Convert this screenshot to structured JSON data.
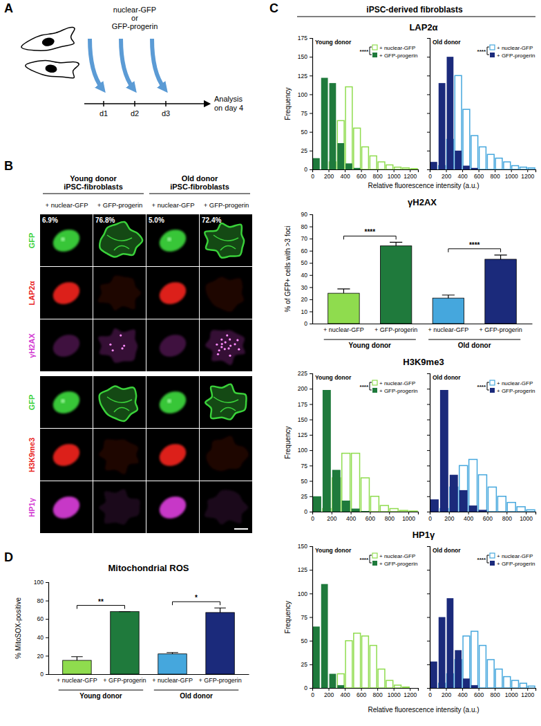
{
  "panel_labels": [
    "A",
    "B",
    "C",
    "D"
  ],
  "schematic": {
    "treatment": [
      "nuclear-GFP",
      "or",
      "GFP-progerin"
    ],
    "days": [
      "d1",
      "d2",
      "d3"
    ],
    "endpoint": [
      "Analysis",
      "on day 4"
    ]
  },
  "images": {
    "headers": [
      [
        "Young donor",
        "iPSC-fibroblasts"
      ],
      [
        "Old donor",
        "iPSC-fibroblasts"
      ]
    ],
    "columns": [
      "+ nuclear-GFP",
      "+ GFP-progerin",
      "+ nuclear-GFP",
      "+ GFP-progerin"
    ],
    "percentages": [
      "6.9%",
      "76.8%",
      "5.0%",
      "72.4%"
    ],
    "rows": [
      {
        "label": "GFP",
        "color": "#3ad13a"
      },
      {
        "label": "LAP2α",
        "color": "#e8231e"
      },
      {
        "label": "γH2AX",
        "color": "#d23ad2"
      },
      {
        "label": "GFP",
        "color": "#3ad13a"
      },
      {
        "label": "H3K9me3",
        "color": "#e8231e"
      },
      {
        "label": "HP1γ",
        "color": "#d23ad2"
      }
    ]
  },
  "section_title": "iPSC-derived fibroblasts",
  "chart_data": [
    {
      "type": "histogram",
      "title": "LAP2α",
      "subtitle": "Young donor",
      "ylabel": "Frequency",
      "xlabel": "Relative fluorescence intensity (a.u.)",
      "bins": [
        0,
        100,
        200,
        300,
        400,
        500,
        600,
        700,
        800,
        900,
        1000,
        1100,
        1200,
        1300
      ],
      "series": [
        {
          "name": "+ nuclear-GFP",
          "color": "#8fdc4e",
          "values": [
            0,
            0,
            10,
            65,
            110,
            55,
            30,
            18,
            10,
            6,
            3,
            2,
            1
          ]
        },
        {
          "name": "+ GFP-progerin",
          "color": "#1f7a3c",
          "values": [
            15,
            122,
            115,
            35,
            8,
            2,
            0,
            0,
            0,
            0,
            0,
            0,
            0
          ]
        }
      ],
      "xlim": [
        0,
        1300
      ],
      "xticks": [
        0,
        200,
        400,
        600,
        800,
        1000,
        1200
      ],
      "ylim": [
        0,
        175
      ],
      "yticks": [
        0,
        25,
        50,
        75,
        100,
        125,
        150,
        175
      ],
      "legend": "upper right",
      "annotation": "****"
    },
    {
      "type": "histogram",
      "subtitle": "Old donor",
      "bins": [
        0,
        100,
        200,
        300,
        400,
        500,
        600,
        700,
        800,
        900,
        1000,
        1100,
        1200,
        1300
      ],
      "series": [
        {
          "name": "+ nuclear-GFP",
          "color": "#45a7dd",
          "values": [
            0,
            5,
            40,
            125,
            80,
            45,
            30,
            20,
            15,
            10,
            5,
            3,
            2
          ]
        },
        {
          "name": "+ GFP-progerin",
          "color": "#1b2a7b",
          "values": [
            10,
            115,
            150,
            25,
            5,
            2,
            0,
            0,
            0,
            0,
            0,
            0,
            0
          ]
        }
      ],
      "xlim": [
        0,
        1300
      ],
      "xticks": [
        0,
        200,
        400,
        600,
        800,
        1000,
        1200
      ],
      "ylim": [
        0,
        175
      ],
      "yticks": [
        0,
        25,
        50,
        75,
        100,
        125,
        150,
        175
      ],
      "tick_labels": "x",
      "legend": "upper right",
      "annotation": "****"
    },
    {
      "type": "bar",
      "title": "γH2AX",
      "ylabel": "% of GFP+ cells with >3 foci",
      "categories": [
        "+ nuclear-GFP",
        "+ GFP-progerin",
        "+ nuclear-GFP",
        "+ GFP-progerin"
      ],
      "groups": [
        "Young donor",
        "Old donor"
      ],
      "values": [
        25,
        64,
        21,
        53
      ],
      "errors": [
        3.5,
        3,
        2.5,
        3.5
      ],
      "colors": [
        "#8fdc4e",
        "#1f7a3c",
        "#45a7dd",
        "#1b2a7b"
      ],
      "ylim": [
        0,
        90
      ],
      "yticks": [
        0,
        10,
        20,
        30,
        40,
        50,
        60,
        70,
        80,
        90
      ],
      "annotations": [
        {
          "text": "****",
          "from": 0,
          "to": 1
        },
        {
          "text": "****",
          "from": 2,
          "to": 3
        }
      ]
    },
    {
      "type": "histogram",
      "title": "H3K9me3",
      "subtitle": "Young donor",
      "ylabel": "Frequency",
      "bins": [
        0,
        100,
        200,
        300,
        400,
        500,
        600,
        700,
        800,
        900,
        1000,
        1100
      ],
      "series": [
        {
          "name": "+ nuclear-GFP",
          "color": "#8fdc4e",
          "values": [
            0,
            5,
            55,
            95,
            95,
            55,
            25,
            10,
            5,
            2,
            1
          ]
        },
        {
          "name": "+ GFP-progerin",
          "color": "#1f7a3c",
          "values": [
            25,
            198,
            68,
            18,
            5,
            1,
            0,
            0,
            0,
            0,
            0
          ]
        }
      ],
      "xlim": [
        0,
        1100
      ],
      "xticks": [
        0,
        200,
        400,
        600,
        800,
        1000
      ],
      "ylim": [
        0,
        225
      ],
      "yticks": [
        0,
        25,
        50,
        75,
        100,
        125,
        150,
        175,
        200,
        225
      ],
      "legend": "upper right",
      "annotation": "****"
    },
    {
      "type": "histogram",
      "subtitle": "Old donor",
      "bins": [
        0,
        100,
        200,
        300,
        400,
        500,
        600,
        700,
        800,
        900,
        1000,
        1100
      ],
      "series": [
        {
          "name": "+ nuclear-GFP",
          "color": "#45a7dd",
          "values": [
            0,
            5,
            40,
            75,
            85,
            60,
            40,
            25,
            15,
            8,
            3
          ]
        },
        {
          "name": "+ GFP-progerin",
          "color": "#1b2a7b",
          "values": [
            20,
            198,
            60,
            35,
            10,
            3,
            0,
            0,
            0,
            0,
            0
          ]
        }
      ],
      "xlim": [
        0,
        1100
      ],
      "xticks": [
        0,
        200,
        400,
        600,
        800,
        1000
      ],
      "ylim": [
        0,
        225
      ],
      "yticks": [
        0,
        25,
        50,
        75,
        100,
        125,
        150,
        175,
        200,
        225
      ],
      "tick_labels": "x",
      "legend": "upper right",
      "annotation": "****"
    },
    {
      "type": "histogram",
      "title": "HP1γ",
      "subtitle": "Young donor",
      "ylabel": "Frequency",
      "xlabel": "Relative fluorescence intensity (a.u.)",
      "bins": [
        0,
        100,
        200,
        300,
        400,
        500,
        600,
        700,
        800,
        900,
        1000,
        1100,
        1200,
        1300
      ],
      "series": [
        {
          "name": "+ nuclear-GFP",
          "color": "#8fdc4e",
          "values": [
            0,
            0,
            0,
            15,
            50,
            58,
            55,
            45,
            20,
            8,
            3,
            1,
            0
          ]
        },
        {
          "name": "+ GFP-progerin",
          "color": "#1f7a3c",
          "values": [
            65,
            110,
            15,
            3,
            0,
            0,
            0,
            0,
            0,
            0,
            0,
            0,
            0
          ]
        }
      ],
      "xlim": [
        0,
        1300
      ],
      "xticks": [
        0,
        200,
        400,
        600,
        800,
        1000,
        1200
      ],
      "ylim": [
        0,
        150
      ],
      "yticks": [
        0,
        25,
        50,
        75,
        100,
        125,
        150
      ],
      "legend": "upper right",
      "annotation": "****"
    },
    {
      "type": "histogram",
      "subtitle": "Old donor",
      "bins": [
        0,
        100,
        200,
        300,
        400,
        500,
        600,
        700,
        800,
        900,
        1000,
        1100,
        1200,
        1300
      ],
      "series": [
        {
          "name": "+ nuclear-GFP",
          "color": "#45a7dd",
          "values": [
            0,
            5,
            15,
            30,
            55,
            60,
            45,
            30,
            20,
            12,
            8,
            5,
            2
          ]
        },
        {
          "name": "+ GFP-progerin",
          "color": "#1b2a7b",
          "values": [
            28,
            75,
            95,
            40,
            10,
            3,
            0,
            0,
            0,
            0,
            0,
            0,
            0
          ]
        }
      ],
      "xlim": [
        0,
        1300
      ],
      "xticks": [
        0,
        200,
        400,
        600,
        800,
        1000,
        1200
      ],
      "ylim": [
        0,
        150
      ],
      "yticks": [
        0,
        25,
        50,
        75,
        100,
        125,
        150
      ],
      "tick_labels": "x",
      "legend": "upper right",
      "annotation": "****"
    },
    {
      "type": "bar",
      "title": "Mitochondrial ROS",
      "ylabel": "% MitoSOX-positive",
      "categories": [
        "+ nuclear-GFP",
        "+ GFP-progerin",
        "+ nuclear-GFP",
        "+ GFP-progerin"
      ],
      "groups": [
        "Young donor",
        "Old donor"
      ],
      "values": [
        15,
        68,
        22,
        67
      ],
      "errors": [
        4,
        0,
        1.5,
        5
      ],
      "colors": [
        "#8fdc4e",
        "#1f7a3c",
        "#45a7dd",
        "#1b2a7b"
      ],
      "ylim": [
        0,
        100
      ],
      "yticks": [
        0,
        20,
        40,
        60,
        80,
        100
      ],
      "annotations": [
        {
          "text": "**",
          "from": 0,
          "to": 1
        },
        {
          "text": "*",
          "from": 2,
          "to": 3
        }
      ]
    }
  ]
}
